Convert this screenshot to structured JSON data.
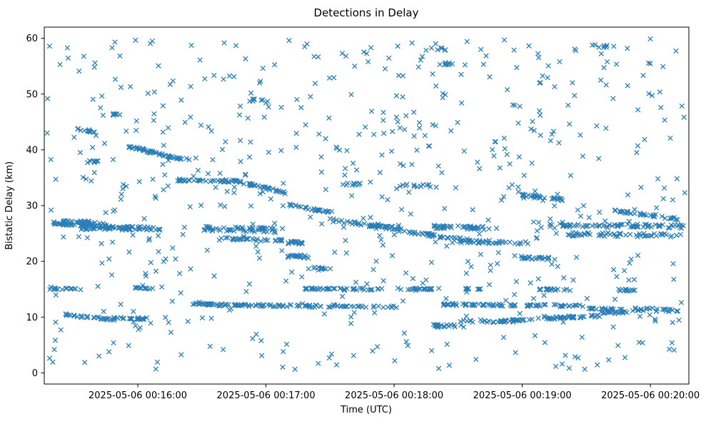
{
  "chart_data": {
    "type": "scatter",
    "title": "Detections in Delay",
    "xlabel": "Time (UTC)",
    "ylabel": "Bistatic Delay (km)",
    "marker": "x",
    "marker_color": "#1f77b4",
    "x_unit": "minutes after 2025-05-06 00:15:00 UTC",
    "xlim": [
      0.27,
      5.3
    ],
    "ylim": [
      -2,
      62
    ],
    "x_ticks": [
      {
        "value": 1,
        "label": "2025-05-06 00:16:00"
      },
      {
        "value": 2,
        "label": "2025-05-06 00:17:00"
      },
      {
        "value": 3,
        "label": "2025-05-06 00:18:00"
      },
      {
        "value": 4,
        "label": "2025-05-06 00:19:00"
      },
      {
        "value": 5,
        "label": "2025-05-06 00:20:00"
      }
    ],
    "y_ticks": [
      0,
      10,
      20,
      30,
      40,
      50,
      60
    ],
    "grid": false,
    "legend": null,
    "tracks_format": [
      "x_start_min",
      "x_end_min",
      "delay_start_km",
      "delay_end_km",
      "num_points",
      "y_jitter_km"
    ],
    "tracks": [
      [
        0.33,
        0.78,
        26.8,
        26.6,
        45,
        0.35
      ],
      [
        0.55,
        1.18,
        26.0,
        25.9,
        70,
        0.35
      ],
      [
        0.42,
        0.62,
        27.1,
        27.1,
        18,
        0.2
      ],
      [
        0.52,
        0.68,
        43.8,
        43.2,
        16,
        0.2
      ],
      [
        0.8,
        0.88,
        46.4,
        46.2,
        8,
        0.15
      ],
      [
        0.93,
        1.28,
        40.6,
        38.6,
        40,
        0.2
      ],
      [
        1.28,
        1.42,
        38.5,
        38.3,
        10,
        0.15
      ],
      [
        1.3,
        1.8,
        34.6,
        34.4,
        40,
        0.25
      ],
      [
        1.8,
        2.15,
        34.2,
        32.3,
        35,
        0.2
      ],
      [
        1.5,
        2.1,
        25.9,
        25.6,
        55,
        0.4
      ],
      [
        1.62,
        2.15,
        24.1,
        23.8,
        35,
        0.3
      ],
      [
        2.18,
        2.52,
        30.1,
        28.8,
        30,
        0.2
      ],
      [
        2.17,
        2.33,
        21.0,
        20.8,
        22,
        0.3
      ],
      [
        2.15,
        2.38,
        23.4,
        23.3,
        20,
        0.25
      ],
      [
        2.37,
        2.52,
        18.8,
        18.7,
        10,
        0.2
      ],
      [
        2.5,
        3.05,
        27.4,
        25.8,
        55,
        0.3
      ],
      [
        3.0,
        3.62,
        25.6,
        23.7,
        45,
        0.25
      ],
      [
        3.3,
        3.8,
        26.2,
        25.9,
        45,
        0.3
      ],
      [
        3.45,
        4.05,
        23.6,
        23.3,
        40,
        0.25
      ],
      [
        3.98,
        4.22,
        20.7,
        20.5,
        25,
        0.25
      ],
      [
        4.0,
        4.38,
        31.9,
        30.9,
        30,
        0.2
      ],
      [
        4.2,
        5.26,
        26.5,
        26.2,
        75,
        0.35
      ],
      [
        4.35,
        5.26,
        24.9,
        24.6,
        60,
        0.35
      ],
      [
        4.72,
        5.22,
        29.1,
        27.6,
        35,
        0.2
      ],
      [
        0.3,
        0.52,
        15.1,
        15.0,
        16,
        0.15
      ],
      [
        0.98,
        1.12,
        15.2,
        15.1,
        12,
        0.15
      ],
      [
        2.28,
        2.92,
        15.1,
        15.0,
        45,
        0.18
      ],
      [
        3.02,
        3.3,
        15.1,
        15.0,
        22,
        0.15
      ],
      [
        3.55,
        3.68,
        15.1,
        15.0,
        10,
        0.15
      ],
      [
        4.12,
        4.38,
        15.0,
        14.9,
        18,
        0.15
      ],
      [
        4.72,
        4.88,
        14.9,
        14.8,
        12,
        0.15
      ],
      [
        1.42,
        1.6,
        12.4,
        12.3,
        20,
        0.15
      ],
      [
        1.55,
        2.62,
        12.2,
        11.9,
        75,
        0.2
      ],
      [
        2.62,
        3.05,
        11.9,
        11.8,
        20,
        0.2
      ],
      [
        3.38,
        4.48,
        12.3,
        12.0,
        80,
        0.2
      ],
      [
        4.5,
        4.78,
        11.6,
        11.4,
        20,
        0.15
      ],
      [
        4.88,
        5.26,
        11.5,
        11.0,
        25,
        0.3
      ],
      [
        0.42,
        0.82,
        10.4,
        9.6,
        30,
        0.2
      ],
      [
        0.82,
        1.08,
        9.8,
        9.7,
        20,
        0.2
      ],
      [
        3.3,
        3.55,
        8.5,
        8.4,
        20,
        0.2
      ],
      [
        3.52,
        4.05,
        9.2,
        9.4,
        40,
        0.25
      ],
      [
        4.05,
        4.62,
        9.6,
        10.3,
        45,
        0.25
      ],
      [
        4.62,
        4.85,
        10.7,
        10.9,
        18,
        0.2
      ],
      [
        3.32,
        3.46,
        55.6,
        55.4,
        8,
        0.25
      ],
      [
        3.28,
        3.42,
        58.2,
        58.0,
        6,
        0.2
      ],
      [
        4.55,
        4.72,
        58.7,
        58.5,
        8,
        0.3
      ],
      [
        0.62,
        0.72,
        37.9,
        37.8,
        8,
        0.2
      ],
      [
        3.05,
        3.35,
        33.6,
        33.4,
        14,
        0.3
      ],
      [
        1.85,
        2.02,
        48.9,
        48.7,
        8,
        0.3
      ],
      [
        2.62,
        2.78,
        33.9,
        33.7,
        10,
        0.25
      ]
    ],
    "clutter": {
      "n": 600,
      "x_range": [
        0.29,
        5.27
      ],
      "y_range": [
        0.5,
        60.0
      ],
      "seed": 7,
      "description": "uniform background detections across the whole time/delay window"
    },
    "layout": {
      "plot_left": 62,
      "plot_top": 38,
      "plot_right": 965,
      "plot_bottom": 538,
      "marker_half_size": 3.2,
      "marker_stroke_width": 1.3
    }
  }
}
